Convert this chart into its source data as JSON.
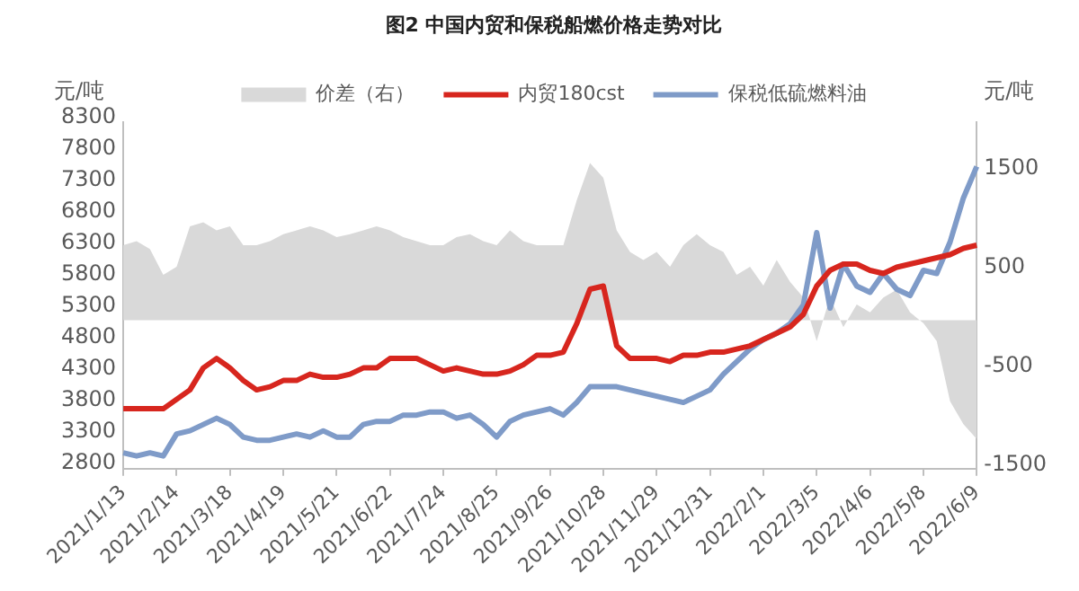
{
  "chart_data": {
    "type": "line",
    "title": "图2 中国内贸和保税船燃价格走势对比",
    "ylabel": "元/吨",
    "y2label": "元/吨",
    "categories": [
      "2021/1/13",
      null,
      null,
      null,
      "2021/2/14",
      null,
      null,
      null,
      "2021/3/18",
      null,
      null,
      null,
      "2021/4/19",
      null,
      null,
      null,
      "2021/5/21",
      null,
      null,
      null,
      "2021/6/22",
      null,
      null,
      null,
      "2021/7/24",
      null,
      null,
      null,
      "2021/8/25",
      null,
      null,
      null,
      "2021/9/26",
      null,
      null,
      null,
      "2021/10/28",
      null,
      null,
      null,
      "2021/11/29",
      null,
      null,
      null,
      "2021/12/31",
      null,
      null,
      null,
      "2022/2/1",
      null,
      null,
      null,
      "2022/3/5",
      null,
      null,
      null,
      "2022/4/6",
      null,
      null,
      null,
      "2022/5/8",
      null,
      null,
      null,
      "2022/6/9"
    ],
    "series": [
      {
        "name": "价差（右）",
        "type": "area",
        "axis": "y2",
        "color": "#d9d9d9",
        "values": [
          760,
          800,
          720,
          460,
          540,
          950,
          990,
          910,
          950,
          760,
          760,
          800,
          870,
          910,
          950,
          910,
          840,
          870,
          910,
          950,
          910,
          840,
          800,
          760,
          760,
          840,
          870,
          800,
          760,
          910,
          800,
          760,
          760,
          760,
          1210,
          1590,
          1440,
          910,
          690,
          610,
          690,
          540,
          760,
          870,
          760,
          690,
          460,
          540,
          350,
          610,
          390,
          230,
          -210,
          230,
          -70,
          160,
          80,
          230,
          310,
          80,
          -30,
          -210,
          -820,
          -1050,
          -1200
        ]
      },
      {
        "name": "内贸180cst",
        "type": "line",
        "color": "#d7261e",
        "values": [
          3750,
          3750,
          3750,
          3750,
          3900,
          4050,
          4400,
          4550,
          4400,
          4200,
          4050,
          4100,
          4200,
          4200,
          4300,
          4250,
          4250,
          4300,
          4400,
          4400,
          4550,
          4550,
          4550,
          4450,
          4350,
          4400,
          4350,
          4300,
          4300,
          4350,
          4450,
          4600,
          4600,
          4650,
          5100,
          5650,
          5700,
          4750,
          4550,
          4550,
          4550,
          4500,
          4600,
          4600,
          4650,
          4650,
          4700,
          4750,
          4850,
          4950,
          5050,
          5250,
          5700,
          5950,
          6050,
          6050,
          5950,
          5900,
          6000,
          6050,
          6100,
          6150,
          6200,
          6300,
          6350
        ]
      },
      {
        "name": "保税低硫燃料油",
        "type": "line",
        "color": "#7f9bc8",
        "values": [
          3050,
          3000,
          3050,
          3000,
          3350,
          3400,
          3500,
          3600,
          3500,
          3300,
          3250,
          3250,
          3300,
          3350,
          3300,
          3400,
          3300,
          3300,
          3500,
          3550,
          3550,
          3650,
          3650,
          3700,
          3700,
          3600,
          3650,
          3500,
          3300,
          3550,
          3650,
          3700,
          3750,
          3650,
          3850,
          4100,
          4100,
          4100,
          4050,
          4000,
          3950,
          3900,
          3850,
          3950,
          4050,
          4300,
          4500,
          4700,
          4850,
          4950,
          5100,
          5400,
          6550,
          5350,
          6050,
          5700,
          5600,
          5900,
          5650,
          5550,
          5950,
          5900,
          6400,
          7100,
          7600
        ]
      }
    ],
    "ylim": [
      2800,
      8300
    ],
    "yticks": [
      2800,
      3300,
      3800,
      4300,
      4800,
      5300,
      5800,
      6300,
      6800,
      7300,
      7800,
      8300
    ],
    "y2lim": [
      -1500,
      2000
    ],
    "y2ticks": [
      -1500,
      -500,
      500,
      1500
    ],
    "legend": "top",
    "grid": false,
    "marker": "none",
    "line_style": "solid"
  }
}
